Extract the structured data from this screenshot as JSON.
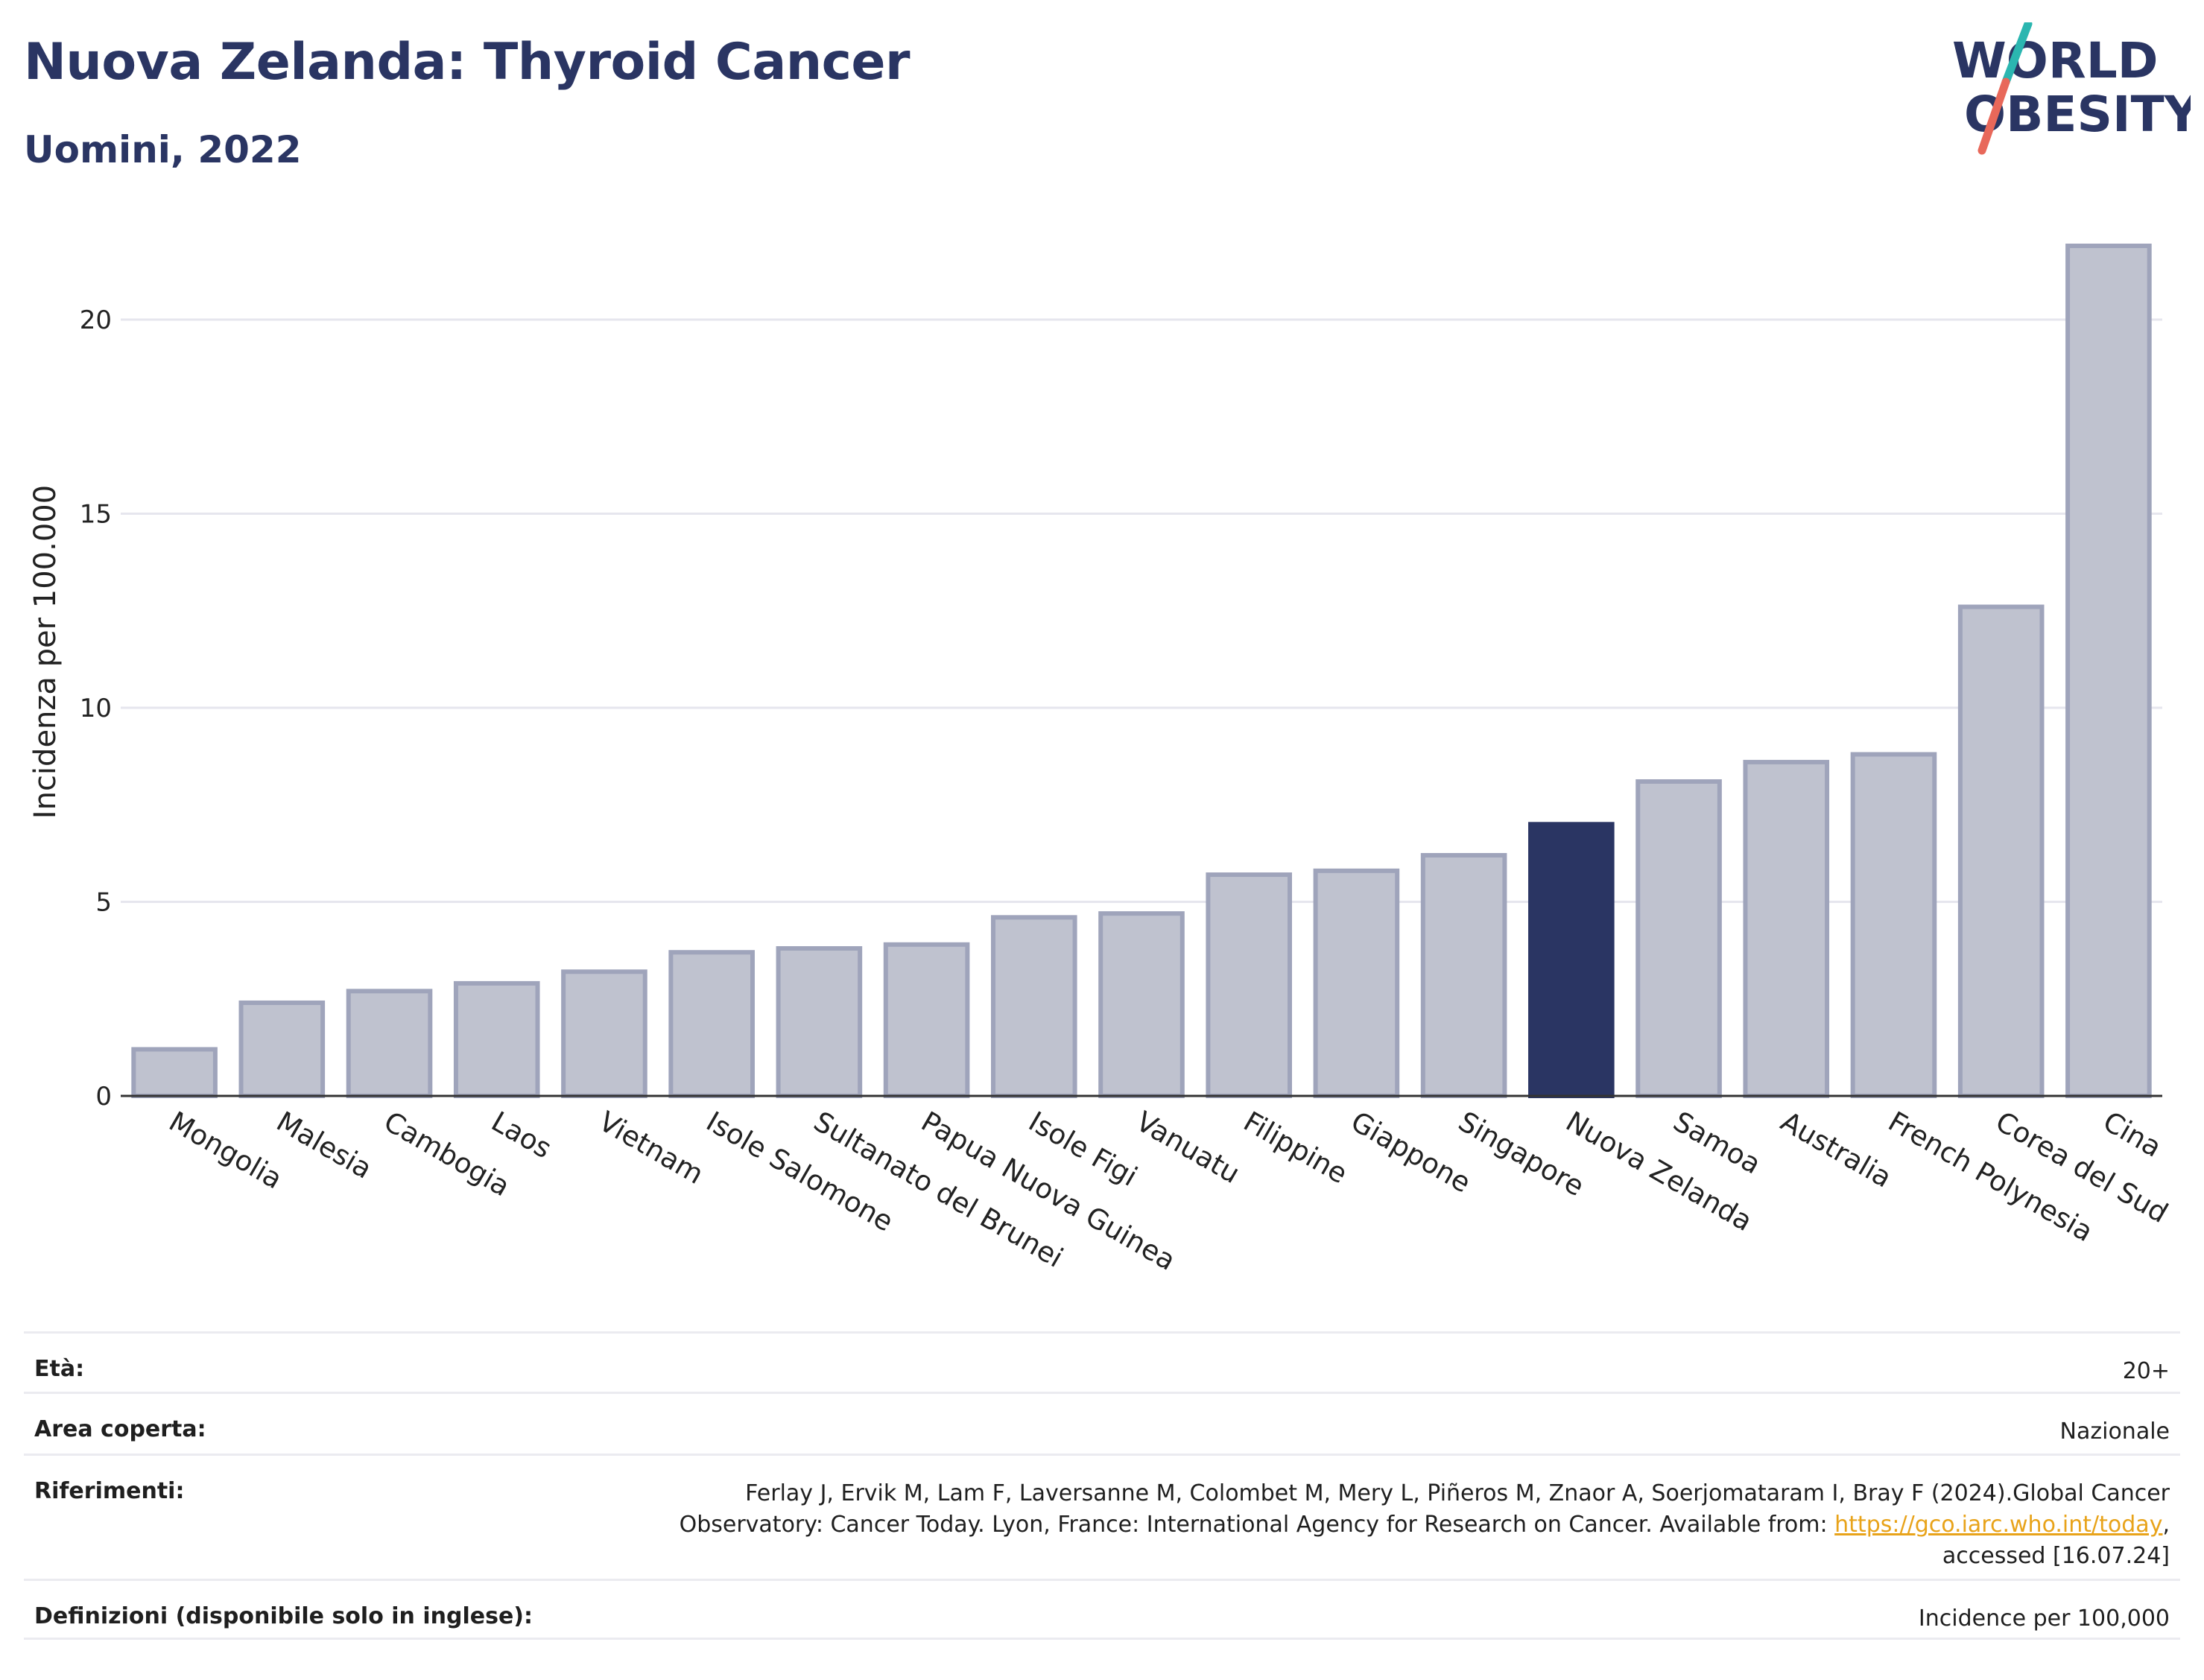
{
  "header": {
    "title": "Nuova Zelanda: Thyroid Cancer",
    "subtitle": "Uomini, 2022"
  },
  "logo": {
    "line1": "WORLD",
    "line2": "OBESITY",
    "colors": {
      "text": "#2a3563",
      "slash_top": "#2bb6b0",
      "slash_bottom": "#e8685a"
    }
  },
  "colors": {
    "bar_default": "#bfc2cf",
    "bar_border": "#9fa4bb",
    "bar_highlight": "#2a3563",
    "grid": "#e6e6ee",
    "link": "#e8a31a"
  },
  "chart_data": {
    "type": "bar",
    "title": "Nuova Zelanda: Thyroid Cancer",
    "subtitle": "Uomini, 2022",
    "xlabel": "",
    "ylabel": "Incidenza per 100.000",
    "ylim": [
      0,
      23
    ],
    "yticks": [
      0,
      5,
      10,
      15,
      20
    ],
    "grid": true,
    "highlight": "Nuova Zelanda",
    "categories": [
      "Mongolia",
      "Malesia",
      "Cambogia",
      "Laos",
      "Vietnam",
      "Isole Salomone",
      "Sultanato del Brunei",
      "Papua Nuova Guinea",
      "Isole Figi",
      "Vanuatu",
      "Filippine",
      "Giappone",
      "Singapore",
      "Nuova Zelanda",
      "Samoa",
      "Australia",
      "French Polynesia",
      "Corea del Sud",
      "Cina"
    ],
    "values": [
      1.2,
      2.4,
      2.7,
      2.9,
      3.2,
      3.7,
      3.8,
      3.9,
      4.6,
      4.7,
      5.7,
      5.8,
      6.2,
      7.0,
      8.1,
      8.6,
      8.8,
      12.6,
      21.9
    ]
  },
  "info": {
    "age_label": "Età:",
    "age_value": "20+",
    "area_label": "Area coperta:",
    "area_value": "Nazionale",
    "ref_label": "Riferimenti:",
    "ref_line1": "Ferlay J, Ervik M, Lam F, Laversanne M, Colombet M, Mery L, Piñeros M, Znaor A, Soerjomataram I, Bray F (2024).Global Cancer",
    "ref_line2_pre": "Observatory: Cancer Today. Lyon, France: International Agency for Research on Cancer. Available from: ",
    "ref_link": "https://gco.iarc.who.int/today",
    "ref_line2_post": ",",
    "ref_line3": "accessed [16.07.24]",
    "def_label": "Definizioni (disponibile solo in inglese):",
    "def_value": "Incidence per 100,000"
  }
}
